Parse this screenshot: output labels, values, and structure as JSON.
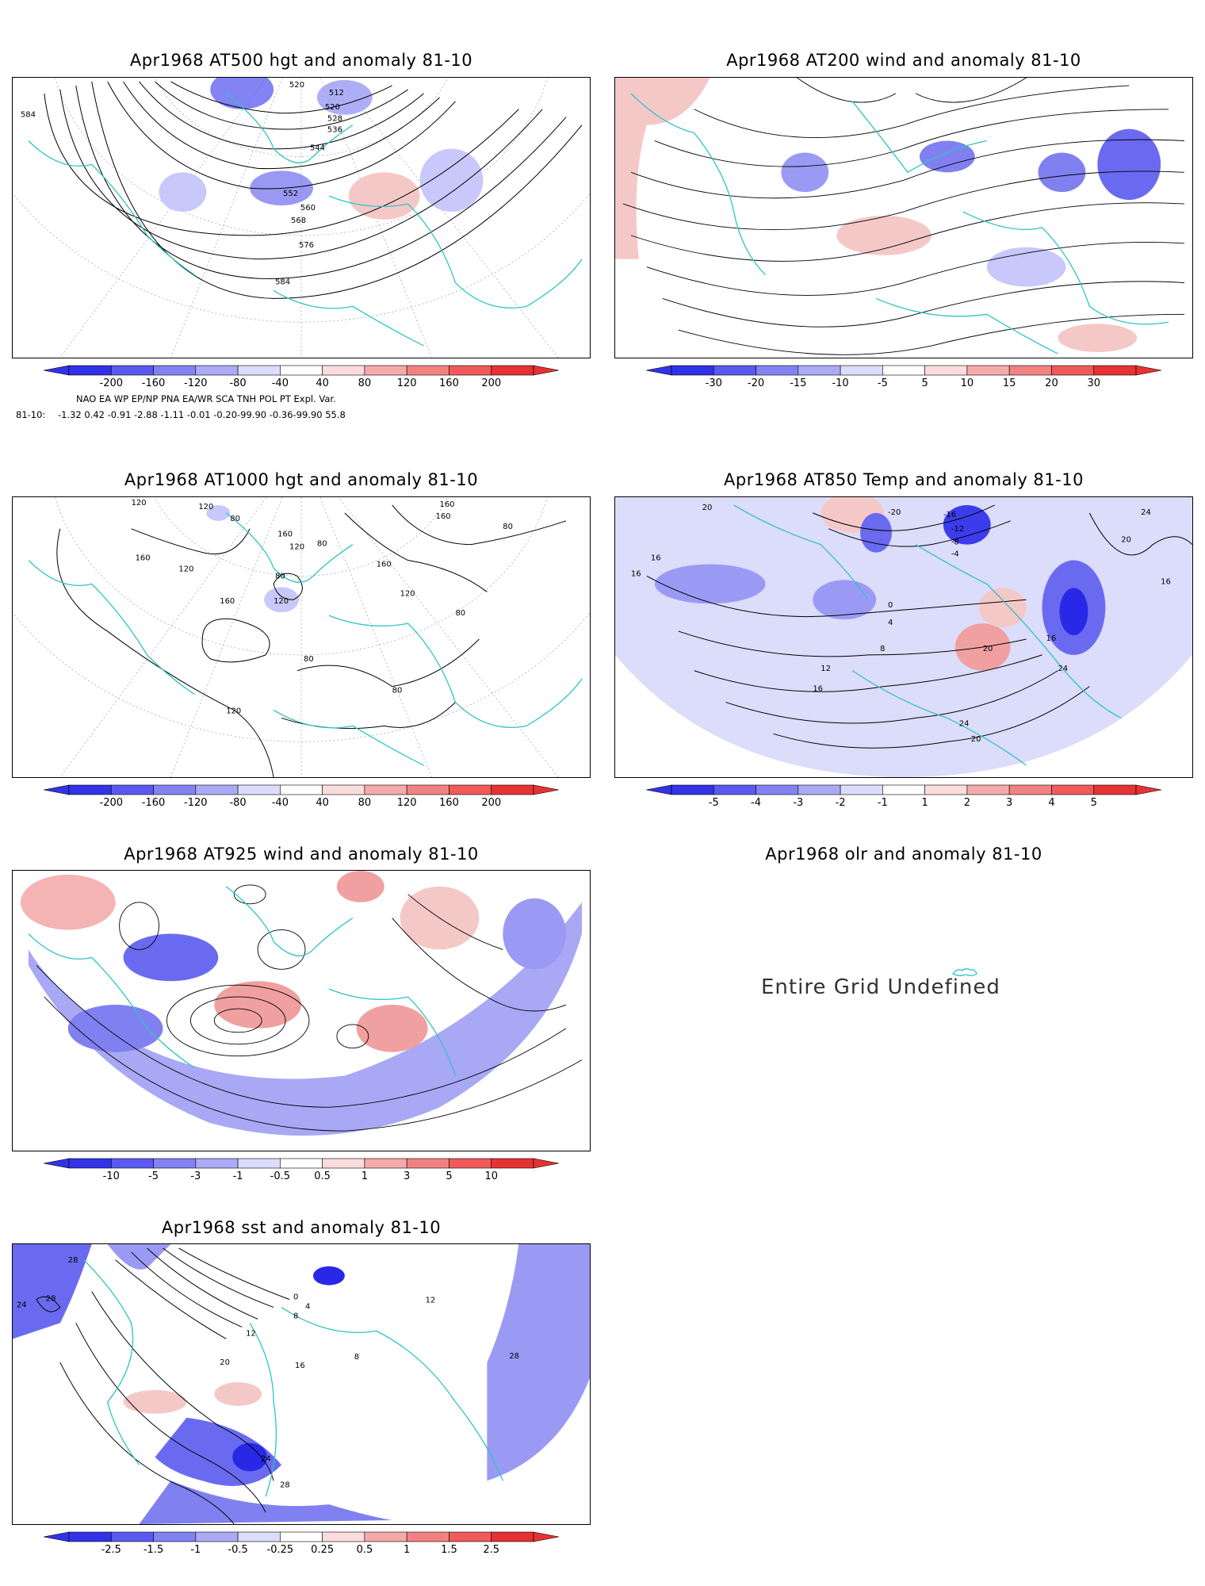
{
  "colors": {
    "land_outline": "#2ec4c4",
    "contour": "#000000",
    "neg_strong": "#1414e6",
    "pos_strong": "#e61414"
  },
  "panels": [
    {
      "id": "p500",
      "title": "Apr1968 AT500 hgt and anomaly 81-10",
      "contour_labels": [
        "584",
        "520",
        "512",
        "520",
        "528",
        "536",
        "544",
        "552",
        "560",
        "568",
        "576",
        "584"
      ],
      "colorbar": [
        "-200",
        "-160",
        "-120",
        "-80",
        "-40",
        "40",
        "80",
        "120",
        "160",
        "200"
      ]
    },
    {
      "id": "p200",
      "title": "Apr1968 AT200 wind and anomaly 81-10",
      "colorbar": [
        "-30",
        "-20",
        "-15",
        "-10",
        "-5",
        "5",
        "10",
        "15",
        "20",
        "30"
      ]
    },
    {
      "id": "p1000",
      "title": "Apr1968 AT1000 hgt and anomaly 81-10",
      "contour_labels": [
        "120",
        "120",
        "80",
        "160",
        "120",
        "80",
        "160",
        "160",
        "160",
        "80",
        "160",
        "120",
        "80",
        "120",
        "160",
        "120",
        "80",
        "80",
        "120",
        "80"
      ],
      "colorbar": [
        "-200",
        "-160",
        "-120",
        "-80",
        "-40",
        "40",
        "80",
        "120",
        "160",
        "200"
      ]
    },
    {
      "id": "p850",
      "title": "Apr1968 AT850 Temp and anomaly 81-10",
      "contour_labels": [
        "20",
        "-20",
        "-16",
        "-12",
        "-8",
        "-4",
        "24",
        "20",
        "16",
        "16",
        "0",
        "4",
        "8",
        "12",
        "16",
        "20",
        "16",
        "20",
        "24",
        "24",
        "20",
        "16"
      ],
      "colorbar": [
        "-5",
        "-4",
        "-3",
        "-2",
        "-1",
        "1",
        "2",
        "3",
        "4",
        "5"
      ]
    },
    {
      "id": "p925",
      "title": "Apr1968 AT925 wind and anomaly 81-10",
      "colorbar": [
        "-10",
        "-5",
        "-3",
        "-1",
        "-0.5",
        "0.5",
        "1",
        "3",
        "5",
        "10"
      ]
    },
    {
      "id": "polr",
      "title": "Apr1968 olr and anomaly 81-10",
      "message": "Entire Grid Undefined"
    },
    {
      "id": "psst",
      "title": "Apr1968 sst and anomaly 81-10",
      "contour_labels": [
        "28",
        "24",
        "28",
        "0",
        "4",
        "8",
        "12",
        "16",
        "20",
        "28",
        "24",
        "28",
        "8",
        "12"
      ],
      "colorbar": [
        "-2.5",
        "-1.5",
        "-1",
        "-0.5",
        "-0.25",
        "0.25",
        "0.5",
        "1",
        "1.5",
        "2.5"
      ]
    }
  ],
  "teleconnections": {
    "header": "NAO    EA     WP    EP/NP   PNA   EA/WR   SCA    TNH    POL    PT     Expl. Var.",
    "row_label": "81-10:",
    "values": "-1.32   0.42  -0.91  -2.88  -1.11  -0.01  -0.20-99.90  -0.36-99.90    55.8"
  }
}
